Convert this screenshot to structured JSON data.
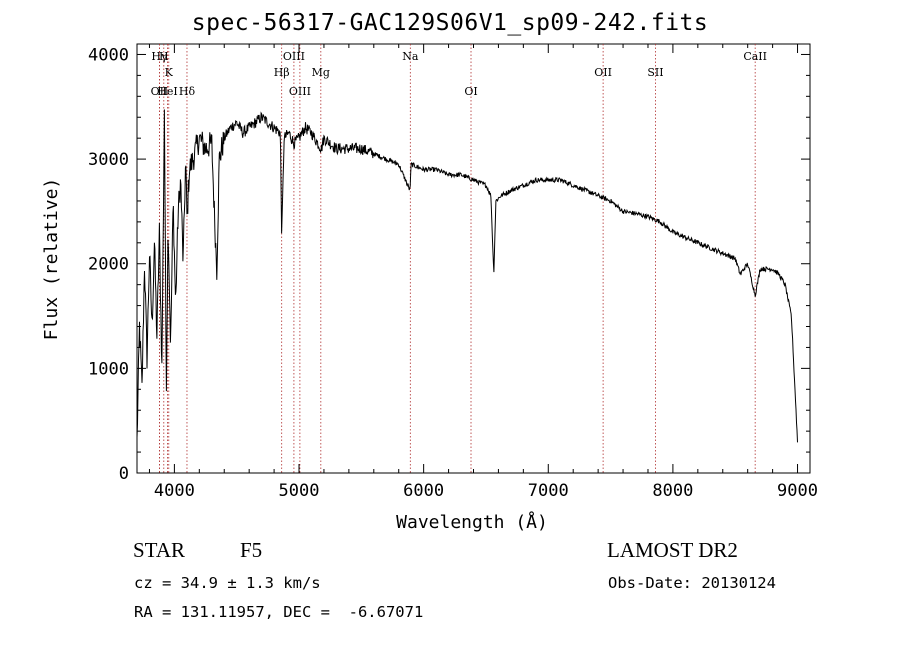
{
  "title": "spec-56317-GAC129S06V1_sp09-242.fits",
  "chart_data": {
    "type": "line",
    "title": "spec-56317-GAC129S06V1_sp09-242.fits",
    "xlabel": "Wavelength (Å)",
    "ylabel": "Flux (relative)",
    "xlim": [
      3700,
      9100
    ],
    "ylim": [
      0,
      4100
    ],
    "xticks": [
      4000,
      5000,
      6000,
      7000,
      8000,
      9000
    ],
    "yticks": [
      0,
      1000,
      2000,
      3000,
      4000
    ],
    "grid": false,
    "series": [
      {
        "color": "#000000",
        "x": [
          3700,
          3720,
          3740,
          3760,
          3780,
          3800,
          3820,
          3840,
          3860,
          3880,
          3900,
          3920,
          3935,
          3950,
          3970,
          3990,
          4010,
          4030,
          4050,
          4070,
          4090,
          4101,
          4120,
          4150,
          4200,
          4250,
          4300,
          4320,
          4340,
          4360,
          4400,
          4450,
          4500,
          4550,
          4600,
          4650,
          4700,
          4750,
          4800,
          4850,
          4861,
          4880,
          4920,
          4960,
          5000,
          5050,
          5100,
          5150,
          5180,
          5200,
          5250,
          5300,
          5400,
          5500,
          5600,
          5700,
          5800,
          5890,
          5900,
          6000,
          6100,
          6200,
          6300,
          6400,
          6500,
          6540,
          6563,
          6580,
          6620,
          6700,
          6800,
          6900,
          7000,
          7100,
          7200,
          7300,
          7400,
          7500,
          7600,
          7700,
          7800,
          7900,
          8000,
          8100,
          8200,
          8300,
          8400,
          8500,
          8540,
          8600,
          8660,
          8700,
          8800,
          8850,
          8900,
          8950,
          8980,
          9000
        ],
        "y": [
          300,
          1400,
          800,
          2000,
          1100,
          2100,
          1400,
          2200,
          1300,
          2300,
          1000,
          3500,
          800,
          2400,
          1200,
          2600,
          1600,
          2500,
          2800,
          2000,
          3000,
          2400,
          2900,
          3000,
          3200,
          3100,
          3150,
          2500,
          1950,
          3000,
          3200,
          3300,
          3350,
          3250,
          3300,
          3350,
          3400,
          3350,
          3300,
          3250,
          2250,
          3200,
          3250,
          3150,
          3200,
          3300,
          3250,
          3150,
          3100,
          3200,
          3150,
          3100,
          3100,
          3100,
          3050,
          3000,
          2950,
          2700,
          2950,
          2900,
          2900,
          2850,
          2850,
          2800,
          2750,
          2650,
          1900,
          2600,
          2650,
          2700,
          2750,
          2800,
          2800,
          2800,
          2750,
          2700,
          2650,
          2600,
          2500,
          2480,
          2450,
          2400,
          2300,
          2250,
          2200,
          2150,
          2100,
          2050,
          1900,
          2000,
          1700,
          1950,
          1950,
          1900,
          1800,
          1500,
          800,
          300
        ]
      }
    ],
    "lines": [
      {
        "label": "Hγ",
        "x": 3880,
        "row": 0
      },
      {
        "label": "H",
        "x": 3915,
        "row": 0
      },
      {
        "label": "K",
        "x": 3955,
        "row": 1
      },
      {
        "label": "OII",
        "x": 3880,
        "row": 2
      },
      {
        "label": "HeI",
        "x": 3945,
        "row": 2
      },
      {
        "label": "Hδ",
        "x": 4101,
        "row": 2
      },
      {
        "label": "OIII",
        "x": 4959,
        "row": 0
      },
      {
        "label": "Hβ",
        "x": 4861,
        "row": 1
      },
      {
        "label": "Mg",
        "x": 5175,
        "row": 1
      },
      {
        "label": "OIII",
        "x": 5007,
        "row": 2
      },
      {
        "label": "Na",
        "x": 5893,
        "row": 0
      },
      {
        "label": "OI",
        "x": 6380,
        "row": 2
      },
      {
        "label": "OII",
        "x": 7440,
        "row": 1
      },
      {
        "label": "SII",
        "x": 7860,
        "row": 1
      },
      {
        "label": "CaII",
        "x": 8660,
        "row": 0
      }
    ]
  },
  "info": {
    "class": "STAR",
    "subclass": "F5",
    "survey": "LAMOST DR2",
    "cz": "cz = 34.9 ± 1.3 km/s",
    "obs_date": "Obs-Date: 20130124",
    "coords": "RA = 131.11957, DEC =  -6.67071"
  }
}
